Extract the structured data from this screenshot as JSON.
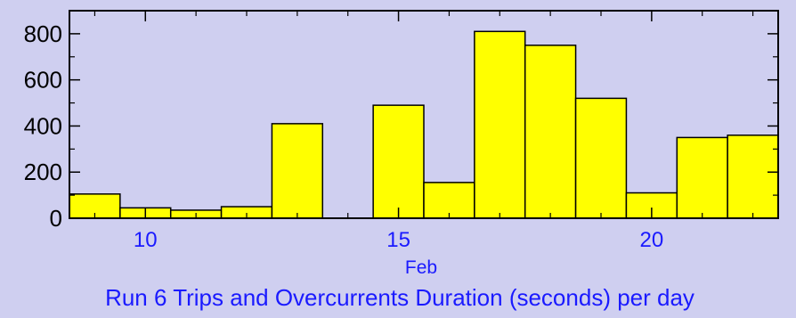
{
  "chart_data": {
    "type": "bar",
    "title": "Run 6 Trips and Overcurrents Duration (seconds) per day",
    "xlabel": "Feb",
    "ylabel": "",
    "xlim": [
      8.5,
      22.5
    ],
    "ylim": [
      0,
      900
    ],
    "x_ticks": [
      10,
      15,
      20
    ],
    "y_ticks": [
      0,
      200,
      400,
      600,
      800
    ],
    "grid": false,
    "bar_color": "#ffff00",
    "x": [
      9,
      10,
      11,
      12,
      13,
      14,
      15,
      16,
      17,
      18,
      19,
      20,
      21,
      22
    ],
    "values": [
      105,
      45,
      35,
      50,
      410,
      0,
      490,
      155,
      810,
      750,
      520,
      110,
      350,
      360
    ]
  }
}
